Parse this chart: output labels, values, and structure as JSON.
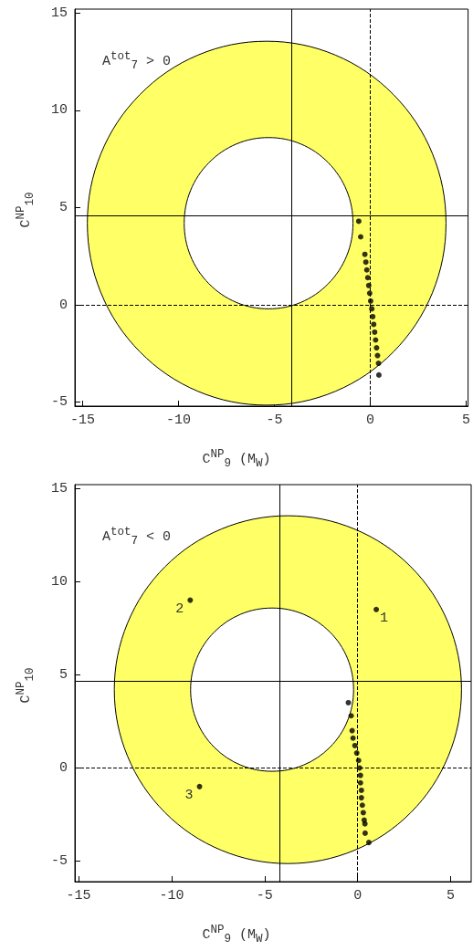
{
  "chart_data": [
    {
      "type": "scatter",
      "xlabel": "C$^{NP}$$_{9}$ (M$_{W}$)",
      "ylabel": "C$^{NP}$$_{10}$",
      "annotations": [
        "A$^{tot}$$_{7}$ > 0"
      ],
      "xlim": [
        -15.4,
        5.1
      ],
      "ylim": [
        -5.2,
        15.2
      ],
      "xticks": [
        -15,
        -10,
        -5,
        0,
        5
      ],
      "yticks": [
        -5,
        0,
        5,
        10,
        15
      ],
      "grid": false,
      "ref_lines": [
        {
          "axis": "x",
          "value": -4.1,
          "color": "#000000",
          "line_style": "solid"
        },
        {
          "axis": "y",
          "value": 4.6,
          "color": "#000000",
          "line_style": "solid"
        },
        {
          "axis": "x",
          "value": 0,
          "color": "#000000",
          "line_style": "dashed"
        },
        {
          "axis": "y",
          "value": 0,
          "color": "#000000",
          "line_style": "dashed"
        }
      ],
      "series": [
        {
          "type": "area",
          "color": "#ffff66",
          "x": [
            3.95,
            3.24,
            1.21,
            -1.82,
            -5.4,
            -8.98,
            -12.01,
            -14.04,
            -14.75,
            -14.04,
            -12.01,
            -8.98,
            -5.4,
            -1.82,
            1.21,
            3.24
          ],
          "values": [
            4.2,
            7.78,
            10.81,
            12.84,
            13.55,
            12.84,
            10.81,
            7.78,
            4.2,
            0.62,
            -2.41,
            -4.44,
            -5.15,
            -4.44,
            -2.41,
            0.62
          ]
        },
        {
          "type": "area",
          "color": "#ffffff",
          "x": [
            -0.9,
            -1.23,
            -2.19,
            -3.62,
            -5.3,
            -6.98,
            -8.41,
            -9.37,
            -9.7,
            -9.37,
            -8.41,
            -6.98,
            -5.3,
            -3.62,
            -2.19,
            -1.23
          ],
          "values": [
            4.2,
            5.88,
            7.31,
            8.27,
            8.6,
            8.27,
            7.31,
            5.88,
            4.2,
            2.52,
            1.09,
            0.13,
            -0.2,
            0.13,
            1.09,
            2.52
          ]
        },
        {
          "color": "#000000",
          "marker": "circle",
          "x": [
            -0.6,
            -0.5,
            -0.28,
            -0.23,
            -0.18,
            -0.13,
            -0.08,
            -0.03,
            0.02,
            0.08,
            0.13,
            0.18,
            0.23,
            0.28,
            0.33,
            0.38,
            0.43,
            0.45
          ],
          "values": [
            4.3,
            3.5,
            2.6,
            2.2,
            1.8,
            1.4,
            1.0,
            0.6,
            0.2,
            -0.2,
            -0.6,
            -1.0,
            -1.4,
            -1.8,
            -2.2,
            -2.6,
            -3.0,
            -3.6
          ]
        }
      ]
    },
    {
      "type": "scatter",
      "xlabel": "C$^{NP}$$_{9}$ (M$_{W}$)",
      "ylabel": "C$^{NP}$$_{10}$",
      "annotations": [
        "A$^{tot}$$_{7}$ < 0",
        {
          "text": "1",
          "x": 1.0,
          "y": 8.5
        },
        {
          "text": "2",
          "x": -9.0,
          "y": 9.0
        },
        {
          "text": "3",
          "x": -8.5,
          "y": -1.0
        }
      ],
      "xlim": [
        -15.2,
        6.1
      ],
      "ylim": [
        -6.1,
        15.2
      ],
      "xticks": [
        -15,
        -10,
        -5,
        0,
        5
      ],
      "yticks": [
        -5,
        0,
        5,
        10,
        15
      ],
      "grid": false,
      "ref_lines": [
        {
          "axis": "x",
          "value": -4.2,
          "color": "#000000",
          "line_style": "solid"
        },
        {
          "axis": "y",
          "value": 4.65,
          "color": "#000000",
          "line_style": "solid"
        },
        {
          "axis": "x",
          "value": 0,
          "color": "#000000",
          "line_style": "dashed"
        },
        {
          "axis": "y",
          "value": 0,
          "color": "#000000",
          "line_style": "dashed"
        }
      ],
      "series": [
        {
          "type": "area",
          "color": "#ffff66",
          "x": [
            5.58,
            4.87,
            2.85,
            -0.18,
            -3.75,
            -7.32,
            -10.35,
            -12.37,
            -13.08,
            -12.37,
            -10.35,
            -7.32,
            -3.75,
            -0.18,
            2.85,
            4.87
          ],
          "values": [
            4.2,
            7.77,
            10.8,
            12.82,
            13.53,
            12.82,
            10.8,
            7.77,
            4.2,
            0.63,
            -2.4,
            -4.42,
            -5.13,
            -4.42,
            -2.4,
            0.63
          ]
        },
        {
          "type": "area",
          "color": "#ffffff",
          "x": [
            -0.22,
            -0.55,
            -1.5,
            -2.92,
            -4.6,
            -6.28,
            -7.7,
            -8.65,
            -8.98,
            -8.65,
            -7.7,
            -6.28,
            -4.6,
            -2.92,
            -1.5,
            -0.55
          ],
          "values": [
            4.2,
            5.88,
            7.3,
            8.25,
            8.58,
            8.25,
            7.3,
            5.88,
            4.2,
            2.52,
            1.1,
            0.15,
            -0.18,
            0.15,
            1.1,
            2.52
          ]
        },
        {
          "color": "#000000",
          "marker": "circle",
          "x": [
            -0.5,
            -0.35,
            -0.3,
            -0.25,
            -0.15,
            -0.05,
            0.05,
            0.1,
            0.15,
            0.15,
            0.2,
            0.2,
            0.25,
            0.3,
            0.35,
            0.39,
            0.4,
            0.6
          ],
          "values": [
            3.5,
            2.8,
            2.0,
            1.6,
            1.2,
            0.8,
            0.4,
            0.0,
            -0.4,
            -0.8,
            -1.2,
            -1.6,
            -2.0,
            -2.4,
            -2.8,
            -3.0,
            -3.5,
            -4.0
          ]
        },
        {
          "color": "#000000",
          "marker": "circle",
          "x": [
            1.0,
            -9.0,
            -8.5
          ],
          "values": [
            8.5,
            9.0,
            -1.0
          ]
        }
      ]
    }
  ]
}
